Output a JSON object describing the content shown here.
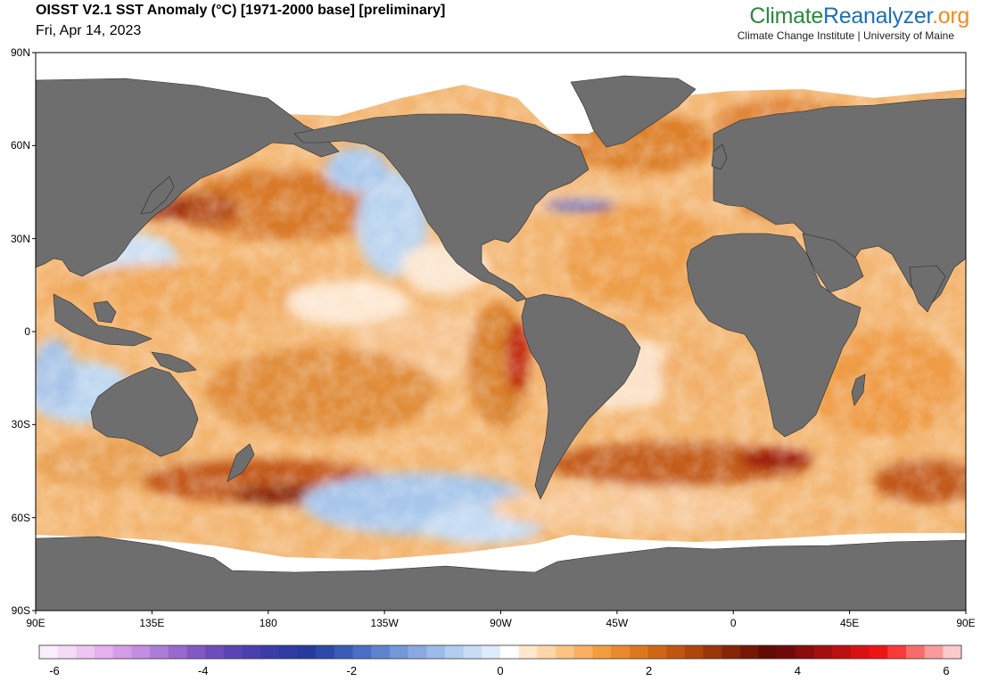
{
  "header": {
    "title": "OISST V2.1 SST Anomaly (°C) [1971-2000 base] [preliminary]",
    "date": "Fri, Apr 14, 2023"
  },
  "brand": {
    "part1": "Climate",
    "part2": "Reanalyzer",
    "part3": ".org",
    "subtitle": "Climate Change Institute | University of Maine",
    "colors": {
      "part1": "#2a8a3a",
      "part2": "#1f6fb2",
      "part3": "#f08c1c"
    }
  },
  "map": {
    "projection": "equirectangular",
    "lon_range": [
      90,
      450
    ],
    "lat_range": [
      -90,
      90
    ],
    "land_color": "#6e6e6e",
    "ice_color": "#ffffff",
    "lat_labels": [
      "90N",
      "60N",
      "30N",
      "0",
      "30S",
      "60S",
      "90S"
    ],
    "lat_values": [
      90,
      60,
      30,
      0,
      -30,
      -60,
      -90
    ],
    "lon_labels": [
      "90E",
      "135E",
      "180",
      "135W",
      "90W",
      "45W",
      "0",
      "45E",
      "90E"
    ],
    "lon_values": [
      90,
      135,
      180,
      225,
      270,
      315,
      360,
      405,
      450
    ]
  },
  "colorbar": {
    "range": [
      -6,
      6
    ],
    "tick_labels": [
      "-6",
      "-4",
      "-2",
      "0",
      "2",
      "4",
      "6"
    ],
    "tick_values": [
      -6,
      -4,
      -2,
      0,
      2,
      4,
      6
    ],
    "colors": [
      "#fbeefb",
      "#f6dbf6",
      "#efc6f1",
      "#e4b0ee",
      "#d59de8",
      "#c38de2",
      "#ad7cd9",
      "#9869cf",
      "#8358c5",
      "#6e4cbb",
      "#5a44b5",
      "#4a3fae",
      "#3a3da8",
      "#2f3aa2",
      "#273a9d",
      "#2d4aa9",
      "#3a5cb7",
      "#4b6fc4",
      "#5e84cf",
      "#7397d9",
      "#88a9e2",
      "#9dbbea",
      "#b2cdf1",
      "#c8ddf6",
      "#deebfa",
      "#ffffff",
      "#ffe7cc",
      "#ffd6a8",
      "#fcc383",
      "#f9b060",
      "#f39c40",
      "#ea8a2c",
      "#de781e",
      "#d06615",
      "#c0550f",
      "#ae450b",
      "#9a3508",
      "#862606",
      "#741805",
      "#620c05",
      "#700a0a",
      "#8a0c0c",
      "#a30e0e",
      "#bd1010",
      "#d81212",
      "#ee1515",
      "#f83a3a",
      "#f96a6a",
      "#fb9a9a",
      "#fdc9c9"
    ]
  }
}
